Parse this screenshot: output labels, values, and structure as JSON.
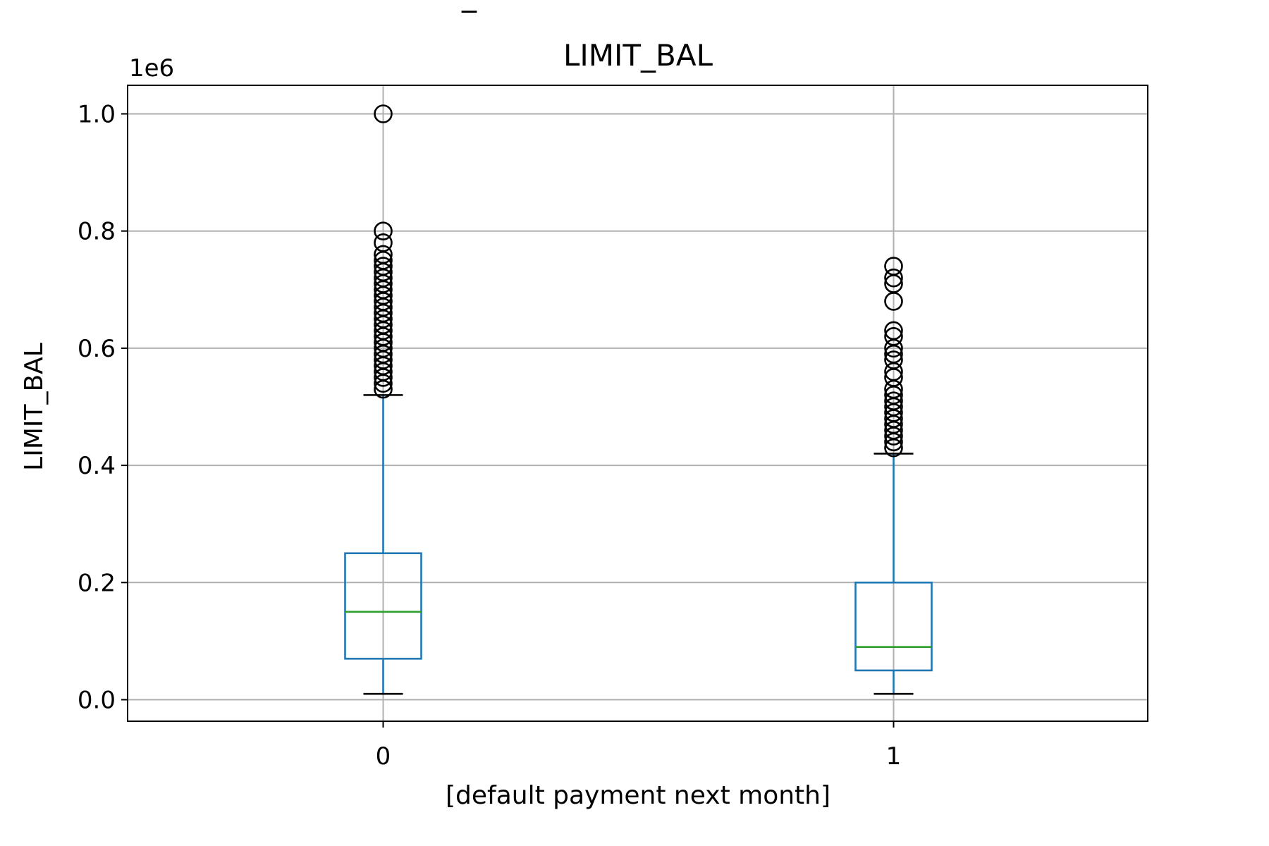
{
  "page_header_fragment": "_",
  "chart_data": {
    "type": "box",
    "title": "LIMIT_BAL",
    "xlabel": "[default payment next month]",
    "ylabel": "LIMIT_BAL",
    "y_offset_label": "1e6",
    "y_scale": 1000000,
    "categories": [
      "0",
      "1"
    ],
    "ylim": [
      -40000,
      1050000
    ],
    "yticks": [
      0,
      200000,
      400000,
      600000,
      800000,
      1000000
    ],
    "ytick_labels": [
      "0.0",
      "0.2",
      "0.4",
      "0.6",
      "0.8",
      "1.0"
    ],
    "grid": true,
    "colors": {
      "box": "#1f77b4",
      "median": "#2ca02c",
      "grid": "#b0b0b0",
      "outlier": "#000000"
    },
    "boxes": [
      {
        "category": "0",
        "whisker_low": 10000,
        "q1": 70000,
        "median": 150000,
        "q3": 250000,
        "whisker_high": 520000,
        "outliers": [
          530000,
          540000,
          550000,
          560000,
          570000,
          580000,
          590000,
          600000,
          610000,
          620000,
          630000,
          640000,
          650000,
          660000,
          670000,
          680000,
          690000,
          700000,
          710000,
          720000,
          730000,
          740000,
          750000,
          760000,
          780000,
          800000,
          1000000
        ]
      },
      {
        "category": "1",
        "whisker_low": 10000,
        "q1": 50000,
        "median": 90000,
        "q3": 200000,
        "whisker_high": 420000,
        "outliers": [
          430000,
          440000,
          450000,
          460000,
          470000,
          480000,
          490000,
          500000,
          510000,
          520000,
          530000,
          550000,
          560000,
          580000,
          590000,
          600000,
          620000,
          630000,
          680000,
          710000,
          720000,
          740000
        ]
      }
    ]
  }
}
